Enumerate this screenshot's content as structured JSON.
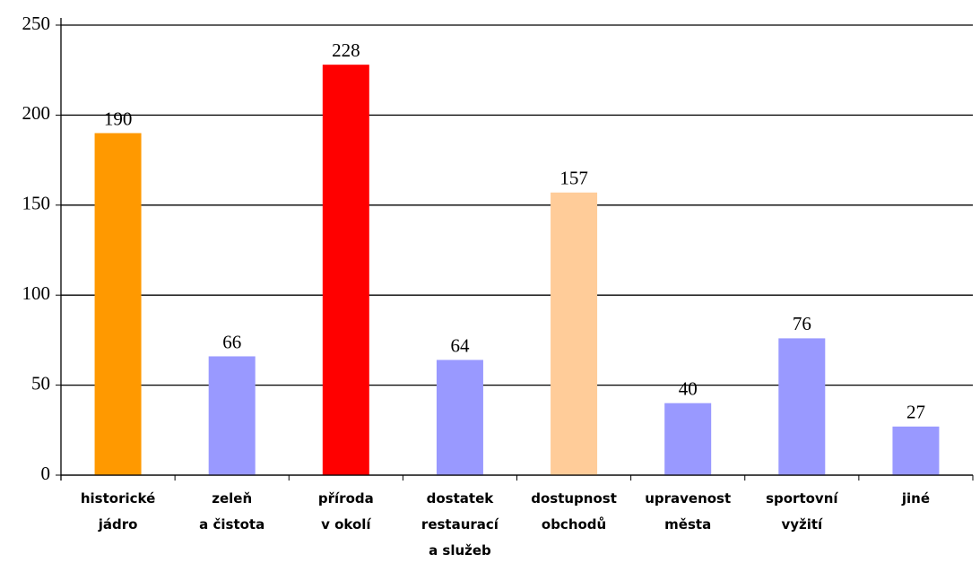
{
  "chart_data": {
    "type": "bar",
    "categories": [
      [
        "historické",
        "jádro"
      ],
      [
        "zeleň",
        "a čistota"
      ],
      [
        "příroda",
        "v okolí"
      ],
      [
        "dostatek",
        "restaurací",
        "a služeb"
      ],
      [
        "dostupnost",
        "obchodů"
      ],
      [
        "upravenost",
        "města"
      ],
      [
        "sportovní",
        "vyžití"
      ],
      [
        "jiné"
      ]
    ],
    "values": [
      190,
      66,
      228,
      64,
      157,
      40,
      76,
      27
    ],
    "colors": [
      "#ff9900",
      "#9999ff",
      "#ff0000",
      "#9999ff",
      "#ffcc99",
      "#9999ff",
      "#9999ff",
      "#9999ff"
    ],
    "ylim": [
      0,
      250
    ],
    "yticks": [
      0,
      50,
      100,
      150,
      200,
      250
    ],
    "grid": true
  }
}
